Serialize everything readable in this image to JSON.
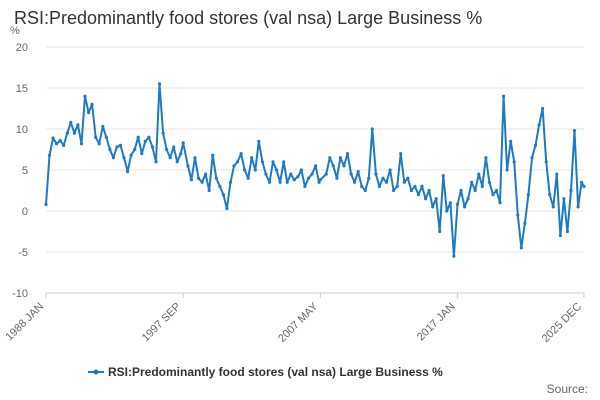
{
  "chart_data": {
    "type": "line",
    "title": "RSI:Predominantly food stores (val nsa) Large Business %",
    "y_unit": "%",
    "ylim": [
      -10,
      20
    ],
    "y_ticks": [
      20,
      15,
      10,
      5,
      0,
      -5,
      -10
    ],
    "x_range": [
      "1988 JAN",
      "2025 DEC"
    ],
    "x_ticks": [
      "1988 JAN",
      "1997 SEP",
      "2007 MAY",
      "2017 JAN",
      "2025 DEC"
    ],
    "grid": true,
    "legend_position": "bottom",
    "series": [
      {
        "name": "RSI:Predominantly food stores (val nsa) Large Business %",
        "color": "#1f7ac4",
        "points": [
          [
            "1988 JAN",
            0.8
          ],
          [
            "1988 APR",
            6.8
          ],
          [
            "1988 JUL",
            8.9
          ],
          [
            "1988 OCT",
            8.2
          ],
          [
            "1989 JAN",
            8.6
          ],
          [
            "1989 APR",
            8.0
          ],
          [
            "1989 JUL",
            9.5
          ],
          [
            "1989 OCT",
            10.8
          ],
          [
            "1990 JAN",
            9.5
          ],
          [
            "1990 APR",
            10.5
          ],
          [
            "1990 JUL",
            8.2
          ],
          [
            "1990 OCT",
            14.0
          ],
          [
            "1991 JAN",
            12.0
          ],
          [
            "1991 APR",
            13.0
          ],
          [
            "1991 JUL",
            9.0
          ],
          [
            "1991 OCT",
            8.2
          ],
          [
            "1992 JAN",
            10.3
          ],
          [
            "1992 APR",
            9.0
          ],
          [
            "1992 JUL",
            7.5
          ],
          [
            "1992 OCT",
            6.5
          ],
          [
            "1993 JAN",
            7.8
          ],
          [
            "1993 APR",
            8.0
          ],
          [
            "1993 JUL",
            6.5
          ],
          [
            "1993 OCT",
            4.8
          ],
          [
            "1994 JAN",
            6.8
          ],
          [
            "1994 APR",
            7.5
          ],
          [
            "1994 JUL",
            9.0
          ],
          [
            "1994 OCT",
            7.0
          ],
          [
            "1995 JAN",
            8.5
          ],
          [
            "1995 APR",
            9.0
          ],
          [
            "1995 JUL",
            7.8
          ],
          [
            "1995 OCT",
            6.0
          ],
          [
            "1996 JAN",
            15.5
          ],
          [
            "1996 APR",
            9.5
          ],
          [
            "1996 JUL",
            7.5
          ],
          [
            "1996 OCT",
            6.5
          ],
          [
            "1997 JAN",
            7.8
          ],
          [
            "1997 APR",
            6.0
          ],
          [
            "1997 JUL",
            7.0
          ],
          [
            "1997 SEP",
            8.3
          ],
          [
            "1998 JAN",
            5.5
          ],
          [
            "1998 APR",
            3.8
          ],
          [
            "1998 JUL",
            6.5
          ],
          [
            "1998 OCT",
            4.0
          ],
          [
            "1999 JAN",
            3.5
          ],
          [
            "1999 APR",
            4.5
          ],
          [
            "1999 JUL",
            2.5
          ],
          [
            "1999 OCT",
            6.8
          ],
          [
            "2000 JAN",
            4.0
          ],
          [
            "2000 APR",
            3.0
          ],
          [
            "2000 JUL",
            2.0
          ],
          [
            "2000 OCT",
            0.3
          ],
          [
            "2001 JAN",
            3.5
          ],
          [
            "2001 APR",
            5.5
          ],
          [
            "2001 JUL",
            6.0
          ],
          [
            "2001 OCT",
            7.0
          ],
          [
            "2002 JAN",
            5.0
          ],
          [
            "2002 APR",
            4.0
          ],
          [
            "2002 JUL",
            6.5
          ],
          [
            "2002 OCT",
            5.0
          ],
          [
            "2003 JAN",
            8.5
          ],
          [
            "2003 APR",
            6.0
          ],
          [
            "2003 JUL",
            4.5
          ],
          [
            "2003 OCT",
            3.5
          ],
          [
            "2004 JAN",
            6.0
          ],
          [
            "2004 APR",
            5.0
          ],
          [
            "2004 JUL",
            3.5
          ],
          [
            "2004 OCT",
            6.0
          ],
          [
            "2005 JAN",
            3.5
          ],
          [
            "2005 APR",
            4.5
          ],
          [
            "2005 JUL",
            3.8
          ],
          [
            "2005 OCT",
            4.2
          ],
          [
            "2006 JAN",
            5.0
          ],
          [
            "2006 APR",
            3.0
          ],
          [
            "2006 JUL",
            4.0
          ],
          [
            "2006 OCT",
            4.5
          ],
          [
            "2007 JAN",
            5.5
          ],
          [
            "2007 APR",
            3.5
          ],
          [
            "2007 MAY",
            3.8
          ],
          [
            "2007 OCT",
            4.5
          ],
          [
            "2008 JAN",
            6.5
          ],
          [
            "2008 APR",
            5.5
          ],
          [
            "2008 JUL",
            4.0
          ],
          [
            "2008 OCT",
            6.5
          ],
          [
            "2009 JAN",
            5.5
          ],
          [
            "2009 APR",
            7.0
          ],
          [
            "2009 JUL",
            4.5
          ],
          [
            "2009 OCT",
            3.5
          ],
          [
            "2010 JAN",
            4.8
          ],
          [
            "2010 APR",
            3.0
          ],
          [
            "2010 JUL",
            2.5
          ],
          [
            "2010 OCT",
            4.0
          ],
          [
            "2011 JAN",
            10.0
          ],
          [
            "2011 APR",
            4.5
          ],
          [
            "2011 JUL",
            3.0
          ],
          [
            "2011 OCT",
            4.0
          ],
          [
            "2012 JAN",
            3.5
          ],
          [
            "2012 APR",
            5.0
          ],
          [
            "2012 JUL",
            2.5
          ],
          [
            "2012 OCT",
            3.0
          ],
          [
            "2013 JAN",
            7.0
          ],
          [
            "2013 APR",
            3.5
          ],
          [
            "2013 JUL",
            4.0
          ],
          [
            "2013 OCT",
            2.5
          ],
          [
            "2014 JAN",
            3.0
          ],
          [
            "2014 APR",
            2.0
          ],
          [
            "2014 JUL",
            3.0
          ],
          [
            "2014 OCT",
            1.5
          ],
          [
            "2015 JAN",
            2.5
          ],
          [
            "2015 APR",
            0.5
          ],
          [
            "2015 JUL",
            1.5
          ],
          [
            "2015 OCT",
            -2.5
          ],
          [
            "2016 JAN",
            4.3
          ],
          [
            "2016 APR",
            0.0
          ],
          [
            "2016 JUL",
            1.0
          ],
          [
            "2016 OCT",
            -5.5
          ],
          [
            "2017 JAN",
            0.8
          ],
          [
            "2017 APR",
            2.5
          ],
          [
            "2017 JUL",
            0.5
          ],
          [
            "2017 OCT",
            1.5
          ],
          [
            "2018 JAN",
            3.5
          ],
          [
            "2018 APR",
            2.5
          ],
          [
            "2018 JUL",
            4.5
          ],
          [
            "2018 OCT",
            3.0
          ],
          [
            "2019 JAN",
            6.5
          ],
          [
            "2019 APR",
            3.5
          ],
          [
            "2019 JUL",
            2.0
          ],
          [
            "2019 OCT",
            2.5
          ],
          [
            "2020 JAN",
            1.0
          ],
          [
            "2020 APR",
            14.0
          ],
          [
            "2020 JUL",
            5.0
          ],
          [
            "2020 OCT",
            8.5
          ],
          [
            "2021 JAN",
            6.0
          ],
          [
            "2021 APR",
            -0.5
          ],
          [
            "2021 JUL",
            -4.5
          ],
          [
            "2021 OCT",
            -1.5
          ],
          [
            "2022 JAN",
            2.0
          ],
          [
            "2022 APR",
            6.5
          ],
          [
            "2022 JUL",
            8.0
          ],
          [
            "2022 OCT",
            10.5
          ],
          [
            "2023 JAN",
            12.5
          ],
          [
            "2023 APR",
            6.0
          ],
          [
            "2023 JUL",
            2.0
          ],
          [
            "2023 OCT",
            0.5
          ],
          [
            "2024 JAN",
            4.5
          ],
          [
            "2024 APR",
            -3.0
          ],
          [
            "2024 JUL",
            1.5
          ],
          [
            "2024 OCT",
            -2.5
          ],
          [
            "2025 JAN",
            2.5
          ],
          [
            "2025 APR",
            9.8
          ],
          [
            "2025 JUL",
            0.5
          ],
          [
            "2025 OCT",
            3.5
          ],
          [
            "2025 DEC",
            3.0
          ]
        ]
      }
    ]
  },
  "legend": {
    "label": "RSI:Predominantly food stores (val nsa) Large Business %"
  },
  "source": {
    "label": "Source:"
  }
}
